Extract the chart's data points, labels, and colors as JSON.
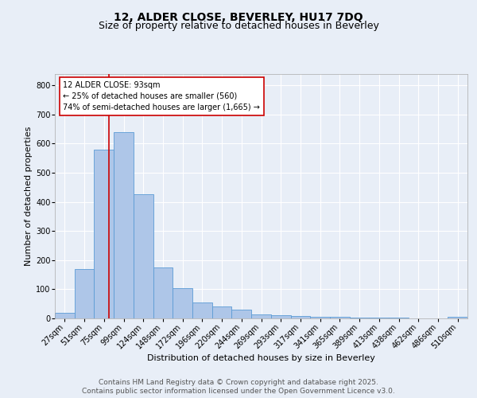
{
  "title1": "12, ALDER CLOSE, BEVERLEY, HU17 7DQ",
  "title2": "Size of property relative to detached houses in Beverley",
  "xlabel": "Distribution of detached houses by size in Beverley",
  "ylabel": "Number of detached properties",
  "categories": [
    "27sqm",
    "51sqm",
    "75sqm",
    "99sqm",
    "124sqm",
    "148sqm",
    "172sqm",
    "196sqm",
    "220sqm",
    "244sqm",
    "269sqm",
    "293sqm",
    "317sqm",
    "341sqm",
    "365sqm",
    "389sqm",
    "413sqm",
    "438sqm",
    "462sqm",
    "486sqm",
    "510sqm"
  ],
  "values": [
    20,
    170,
    580,
    640,
    425,
    175,
    105,
    55,
    40,
    30,
    15,
    10,
    8,
    6,
    5,
    3,
    3,
    2,
    1,
    1,
    5
  ],
  "bar_color": "#aec6e8",
  "bar_edge_color": "#5b9bd5",
  "vline_color": "#cc0000",
  "annotation_text": "12 ALDER CLOSE: 93sqm\n← 25% of detached houses are smaller (560)\n74% of semi-detached houses are larger (1,665) →",
  "annotation_box_color": "#ffffff",
  "annotation_box_edge": "#cc0000",
  "ylim": [
    0,
    840
  ],
  "yticks": [
    0,
    100,
    200,
    300,
    400,
    500,
    600,
    700,
    800
  ],
  "footnote1": "Contains HM Land Registry data © Crown copyright and database right 2025.",
  "footnote2": "Contains public sector information licensed under the Open Government Licence v3.0.",
  "bg_color": "#e8eef7",
  "plot_bg_color": "#e8eef7",
  "title_fontsize": 10,
  "subtitle_fontsize": 9,
  "axis_label_fontsize": 8,
  "tick_fontsize": 7,
  "annotation_fontsize": 7,
  "footnote_fontsize": 6.5
}
